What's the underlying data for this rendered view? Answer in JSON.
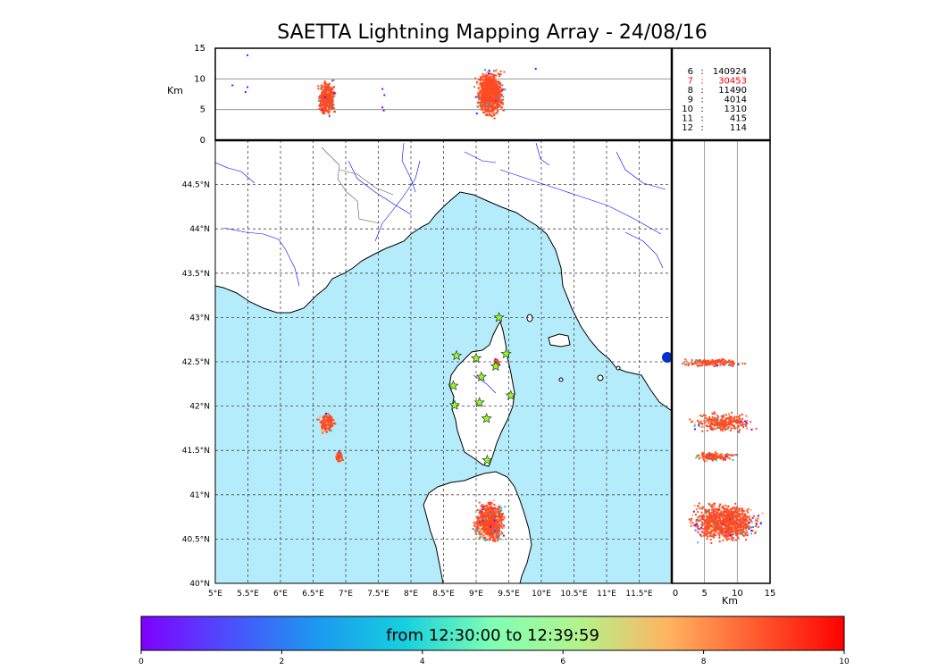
{
  "title": "SAETTA Lightning Mapping Array - 24/08/16",
  "chart_data": [
    {
      "type": "scatter",
      "panel": "altitude-vs-longitude",
      "ylabel": "Km",
      "xlim": [
        5,
        12.5
      ],
      "ylim": [
        0,
        15
      ],
      "yticks": [
        "0",
        "5",
        "10",
        "15"
      ],
      "gridlines_y": [
        5,
        10
      ],
      "clusters": [
        {
          "lon": [
            6.55,
            6.85
          ],
          "alt": [
            3,
            11.5
          ],
          "core_alt": [
            4,
            10
          ]
        },
        {
          "lon": [
            8.95,
            9.45
          ],
          "alt": [
            0,
            15
          ],
          "core_alt": [
            4,
            11.5
          ]
        }
      ],
      "stray_points": [
        {
          "lon": 5.48,
          "alt": 14.0
        },
        {
          "lon": 5.48,
          "alt": 8.8
        },
        {
          "lon": 5.45,
          "alt": 8.0
        },
        {
          "lon": 7.55,
          "alt": 8.5
        },
        {
          "lon": 7.58,
          "alt": 7.5
        },
        {
          "lon": 7.55,
          "alt": 5.5
        },
        {
          "lon": 7.57,
          "alt": 5.0
        },
        {
          "lon": 5.25,
          "alt": 9.1
        },
        {
          "lon": 9.9,
          "alt": 11.8
        }
      ]
    },
    {
      "type": "table",
      "panel": "altitude-counts",
      "rows": [
        {
          "alt": "6",
          "count": "140924",
          "color": "#000000"
        },
        {
          "alt": "7",
          "count": "30453",
          "color": "#ff0000"
        },
        {
          "alt": "8",
          "count": "11490",
          "color": "#000000"
        },
        {
          "alt": "9",
          "count": "4014",
          "color": "#000000"
        },
        {
          "alt": "10",
          "count": "1310",
          "color": "#000000"
        },
        {
          "alt": "11",
          "count": "415",
          "color": "#000000"
        },
        {
          "alt": "12",
          "count": "114",
          "color": "#000000"
        }
      ]
    },
    {
      "type": "scatter",
      "panel": "map",
      "xlim": [
        5,
        12
      ],
      "ylim": [
        40,
        45
      ],
      "xticks": [
        "5°E",
        "5.5°E",
        "6°E",
        "6.5°E",
        "7°E",
        "7.5°E",
        "8°E",
        "8.5°E",
        "9°E",
        "9.5°E",
        "10°E",
        "10.5°E",
        "11°E",
        "11.5°E"
      ],
      "yticks": [
        "40°N",
        "40.5°N",
        "41°N",
        "41.5°N",
        "42°N",
        "42.5°N",
        "43°N",
        "43.5°N",
        "44°N",
        "44.5°N"
      ],
      "colors": {
        "sea": "#b5ecfb",
        "land": "#ffffff",
        "coast": "#000000",
        "rivers": "#0000ff"
      },
      "clusters": [
        {
          "lon": [
            8.95,
            9.45
          ],
          "lat": [
            40.45,
            40.95
          ]
        },
        {
          "lon": [
            6.55,
            6.85
          ],
          "lat": [
            41.7,
            41.95
          ]
        },
        {
          "lon": [
            6.82,
            6.95
          ],
          "lat": [
            41.38,
            41.5
          ]
        },
        {
          "lon": [
            9.25,
            9.35
          ],
          "lat": [
            42.45,
            42.55
          ]
        }
      ],
      "stations": [
        {
          "lon": 9.35,
          "lat": 43.0
        },
        {
          "lon": 8.7,
          "lat": 42.57
        },
        {
          "lon": 9.0,
          "lat": 42.54
        },
        {
          "lon": 9.46,
          "lat": 42.59
        },
        {
          "lon": 9.3,
          "lat": 42.45
        },
        {
          "lon": 9.08,
          "lat": 42.33
        },
        {
          "lon": 8.65,
          "lat": 42.23
        },
        {
          "lon": 9.53,
          "lat": 42.12
        },
        {
          "lon": 8.67,
          "lat": 42.01
        },
        {
          "lon": 9.05,
          "lat": 42.04
        },
        {
          "lon": 9.16,
          "lat": 41.86
        },
        {
          "lon": 9.17,
          "lat": 41.39
        }
      ]
    },
    {
      "type": "scatter",
      "panel": "latitude-vs-altitude",
      "xlabel": "Km",
      "xlim": [
        0,
        15
      ],
      "xticks": [
        "0",
        "5",
        "10",
        "15"
      ],
      "gridlines_x": [
        5,
        10
      ],
      "clusters": [
        {
          "lat": [
            42.45,
            42.55
          ],
          "alt": [
            0,
            12
          ]
        },
        {
          "lat": [
            41.7,
            41.95
          ],
          "alt": [
            2,
            13
          ]
        },
        {
          "lat": [
            41.38,
            41.5
          ],
          "alt": [
            3,
            10
          ]
        },
        {
          "lat": [
            40.45,
            40.95
          ],
          "alt": [
            2,
            14
          ]
        }
      ]
    },
    {
      "type": "heatmap",
      "panel": "colorbar",
      "label": "from 12:30:00 to 12:39:59",
      "range": [
        0,
        10
      ],
      "ticks": [
        "0",
        "2",
        "4",
        "6",
        "8",
        "10"
      ]
    }
  ]
}
